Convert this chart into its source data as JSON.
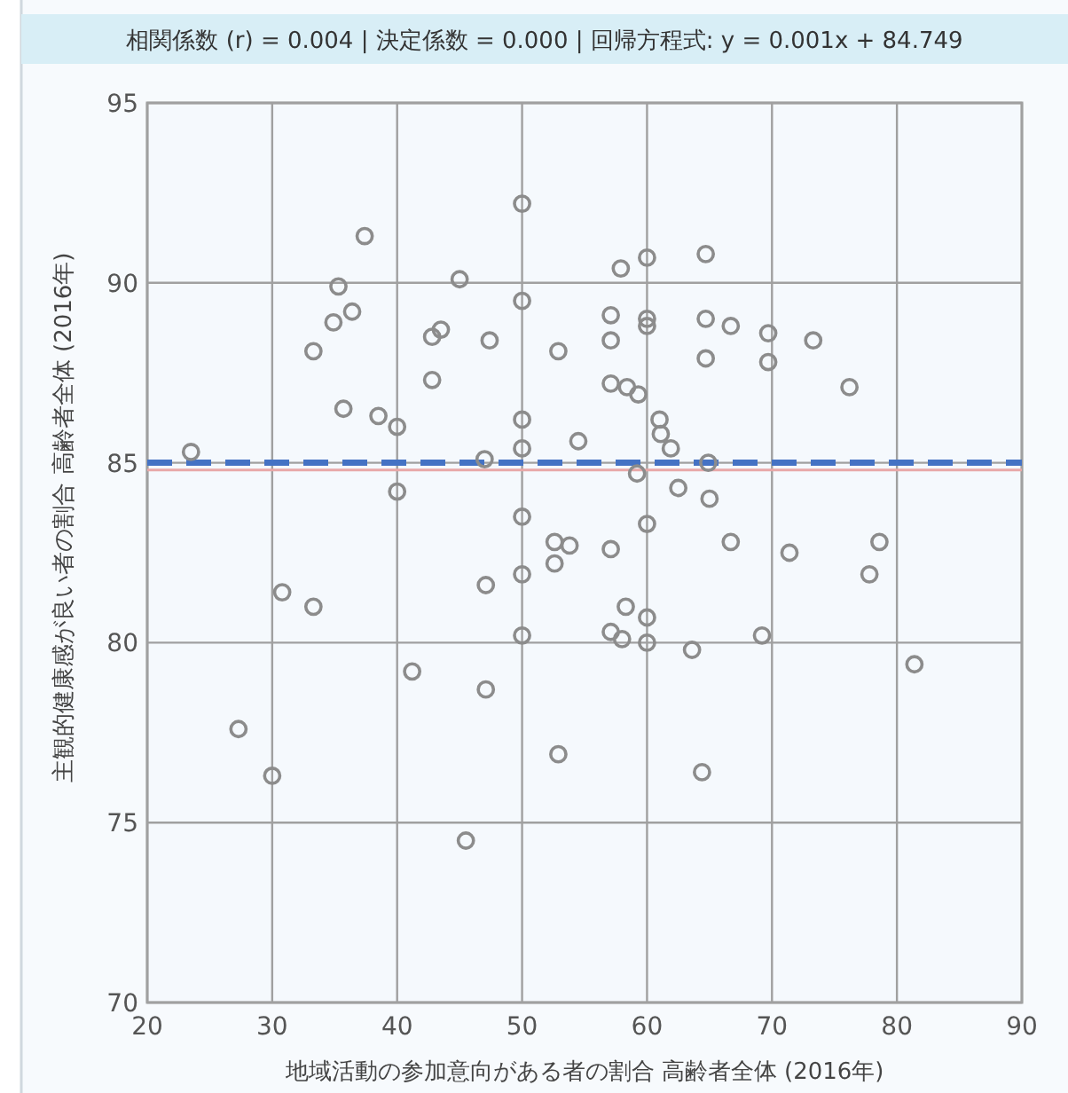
{
  "chart_data": {
    "type": "scatter",
    "title": "相関係数 (r) = 0.004 | 決定係数 = 0.000 | 回帰方程式: y = 0.001x + 84.749",
    "xlabel": "地域活動の参加意向がある者の割合 高齢者全体 (2016年)",
    "ylabel": "主観的健康感が良い者の割合 高齢者全体 (2016年)",
    "xlim": [
      20,
      90
    ],
    "ylim": [
      70,
      95
    ],
    "xticks": [
      20,
      30,
      40,
      50,
      60,
      70,
      80,
      90
    ],
    "yticks": [
      70,
      75,
      80,
      85,
      90,
      95
    ],
    "grid": true,
    "ref_lines": [
      {
        "axis": "y",
        "value": 85.0,
        "color": "#4472c4",
        "line_style": "dashed"
      }
    ],
    "series": [
      {
        "type": "scatter",
        "color": "#8c8c8c",
        "marker": "circle",
        "x": [
          23.5,
          27.3,
          30.0,
          30.8,
          33.3,
          33.3,
          34.9,
          35.3,
          35.7,
          36.4,
          37.4,
          38.5,
          40.0,
          40.0,
          41.2,
          42.8,
          43.5,
          42.8,
          45.0,
          45.5,
          47.0,
          47.1,
          47.1,
          47.4,
          50.0,
          50.0,
          50.0,
          50.0,
          50.0,
          50.0,
          50.0,
          52.6,
          52.6,
          52.9,
          52.9,
          53.8,
          54.5,
          57.1,
          57.1,
          57.1,
          57.1,
          57.1,
          57.9,
          58.0,
          58.3,
          58.4,
          59.2,
          59.3,
          60.0,
          60.0,
          60.0,
          60.0,
          60.0,
          60.0,
          61.0,
          61.1,
          61.9,
          62.5,
          63.6,
          64.4,
          64.7,
          64.7,
          64.7,
          64.9,
          65.0,
          66.7,
          66.7,
          69.2,
          69.7,
          69.7,
          71.4,
          73.3,
          76.2,
          77.8,
          78.6,
          81.4
        ],
        "values": [
          85.3,
          77.6,
          76.3,
          81.4,
          81.0,
          88.1,
          88.9,
          89.9,
          86.5,
          89.2,
          91.3,
          86.3,
          86.0,
          84.2,
          79.2,
          88.5,
          88.7,
          87.3,
          90.1,
          74.5,
          85.1,
          81.6,
          78.7,
          88.4,
          92.2,
          89.5,
          86.2,
          85.4,
          83.5,
          81.9,
          80.2,
          82.8,
          82.2,
          88.1,
          76.9,
          82.7,
          85.6,
          89.1,
          88.4,
          87.2,
          82.6,
          80.3,
          90.4,
          80.1,
          81.0,
          87.1,
          84.7,
          86.9,
          90.7,
          89.0,
          88.8,
          83.3,
          80.7,
          80.0,
          86.2,
          85.8,
          85.4,
          84.3,
          79.8,
          76.4,
          90.8,
          89.0,
          87.9,
          85.0,
          84.0,
          88.8,
          82.8,
          80.2,
          88.6,
          87.8,
          82.5,
          88.4,
          87.1,
          81.9,
          82.8,
          79.4
        ]
      },
      {
        "type": "line",
        "color": "#e8a8a8",
        "x": [
          20,
          90
        ],
        "values": [
          84.8,
          84.8
        ]
      }
    ]
  }
}
